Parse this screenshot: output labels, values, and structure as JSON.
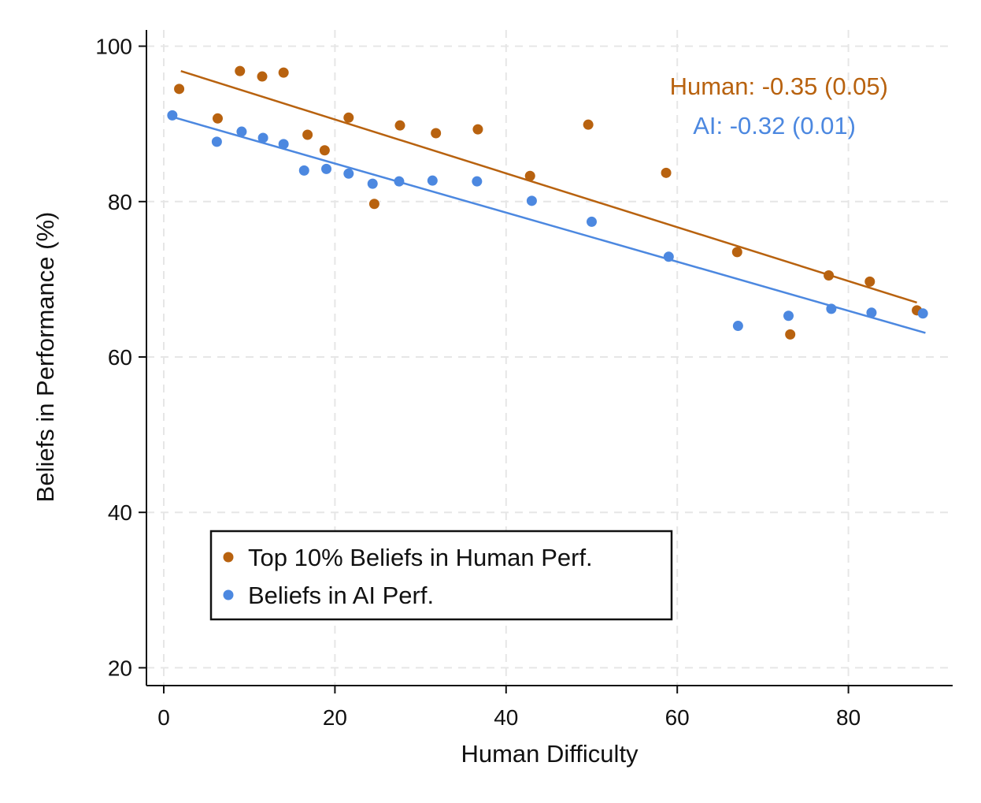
{
  "chart_data": {
    "type": "scatter",
    "xlabel": "Human Difficulty",
    "ylabel": "Beliefs in Performance (%)",
    "xlim": [
      -2,
      92
    ],
    "ylim": [
      18,
      102
    ],
    "xticks": [
      0,
      20,
      40,
      60,
      80
    ],
    "yticks": [
      20,
      40,
      60,
      80,
      100
    ],
    "grid": true,
    "legend_position": "bottom-left",
    "series": [
      {
        "name": "Top 10% Beliefs in Human Perf.",
        "color": "#b8620f",
        "points": [
          [
            1.8,
            94.5
          ],
          [
            6.3,
            90.7
          ],
          [
            8.9,
            96.8
          ],
          [
            11.5,
            96.1
          ],
          [
            14.0,
            96.6
          ],
          [
            16.8,
            88.6
          ],
          [
            18.8,
            86.6
          ],
          [
            21.6,
            90.8
          ],
          [
            24.6,
            79.7
          ],
          [
            27.6,
            89.8
          ],
          [
            31.8,
            88.8
          ],
          [
            36.7,
            89.3
          ],
          [
            42.8,
            83.3
          ],
          [
            49.6,
            89.9
          ],
          [
            58.7,
            83.7
          ],
          [
            67.0,
            73.5
          ],
          [
            73.2,
            62.9
          ],
          [
            77.7,
            70.5
          ],
          [
            82.5,
            69.7
          ],
          [
            88.0,
            66.0
          ]
        ],
        "fit": {
          "x0": 2,
          "y0": 96.8,
          "x1": 88,
          "y1": 67.0
        }
      },
      {
        "name": "Beliefs in AI Perf.",
        "color": "#4c88e0",
        "points": [
          [
            1.0,
            91.1
          ],
          [
            6.2,
            87.7
          ],
          [
            9.1,
            89.0
          ],
          [
            11.6,
            88.2
          ],
          [
            14.0,
            87.4
          ],
          [
            16.4,
            84.0
          ],
          [
            19.0,
            84.2
          ],
          [
            21.6,
            83.6
          ],
          [
            24.4,
            82.3
          ],
          [
            27.5,
            82.6
          ],
          [
            31.4,
            82.7
          ],
          [
            36.6,
            82.6
          ],
          [
            43.0,
            80.1
          ],
          [
            50.0,
            77.4
          ],
          [
            59.0,
            72.9
          ],
          [
            67.1,
            64.0
          ],
          [
            73.0,
            65.3
          ],
          [
            78.0,
            66.2
          ],
          [
            82.7,
            65.7
          ],
          [
            88.7,
            65.6
          ]
        ],
        "fit": {
          "x0": 1,
          "y0": 90.9,
          "x1": 89,
          "y1": 63.1
        }
      }
    ],
    "annotations": [
      {
        "text": "Human: -0.35 (0.05)",
        "color": "#b8620f"
      },
      {
        "text": "AI: -0.32 (0.01)",
        "color": "#4c88e0"
      }
    ]
  }
}
